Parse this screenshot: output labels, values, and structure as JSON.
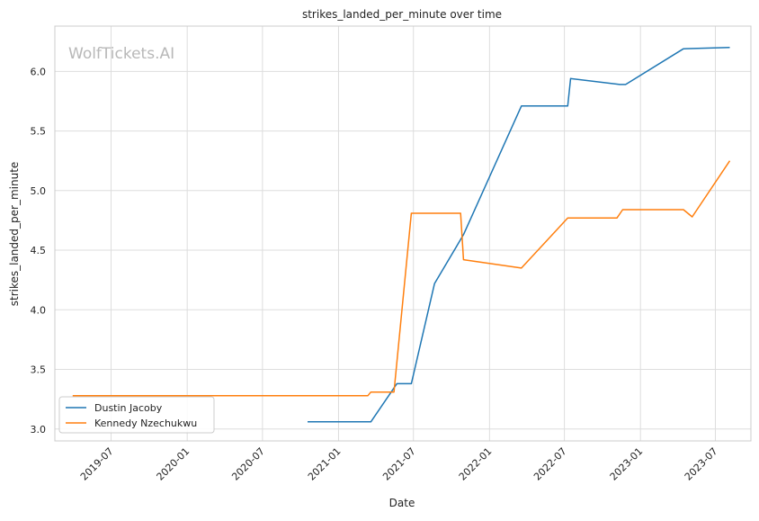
{
  "chart_data": {
    "type": "line",
    "title": "strikes_landed_per_minute over time",
    "xlabel": "Date",
    "ylabel": "strikes_landed_per_minute",
    "watermark": "WolfTickets.AI",
    "xlim": [
      "2019-02-15",
      "2023-09-25"
    ],
    "ylim": [
      2.9,
      6.38
    ],
    "x_ticks": [
      {
        "date": "2019-07-01",
        "label": "2019-07"
      },
      {
        "date": "2020-01-01",
        "label": "2020-01"
      },
      {
        "date": "2020-07-01",
        "label": "2020-07"
      },
      {
        "date": "2021-01-01",
        "label": "2021-01"
      },
      {
        "date": "2021-07-01",
        "label": "2021-07"
      },
      {
        "date": "2022-01-01",
        "label": "2022-01"
      },
      {
        "date": "2022-07-01",
        "label": "2022-07"
      },
      {
        "date": "2023-01-01",
        "label": "2023-01"
      },
      {
        "date": "2023-07-01",
        "label": "2023-07"
      }
    ],
    "y_ticks": [
      3.0,
      3.5,
      4.0,
      4.5,
      5.0,
      5.5,
      6.0
    ],
    "y_tick_labels": [
      "3.0",
      "3.5",
      "4.0",
      "4.5",
      "5.0",
      "5.5",
      "6.0"
    ],
    "grid": true,
    "legend_position": "lower-left",
    "series": [
      {
        "name": "Dustin Jacoby",
        "color": "#1f77b4",
        "points": [
          {
            "x": "2020-10-18",
            "y": 3.06
          },
          {
            "x": "2021-03-20",
            "y": 3.06
          },
          {
            "x": "2021-05-22",
            "y": 3.38
          },
          {
            "x": "2021-06-26",
            "y": 3.38
          },
          {
            "x": "2021-08-21",
            "y": 4.22
          },
          {
            "x": "2021-10-30",
            "y": 4.63
          },
          {
            "x": "2022-03-19",
            "y": 5.71
          },
          {
            "x": "2022-07-09",
            "y": 5.71
          },
          {
            "x": "2022-07-16",
            "y": 5.94
          },
          {
            "x": "2022-11-12",
            "y": 5.89
          },
          {
            "x": "2022-11-26",
            "y": 5.89
          },
          {
            "x": "2023-04-15",
            "y": 6.19
          },
          {
            "x": "2023-08-05",
            "y": 6.2
          }
        ]
      },
      {
        "name": "Kennedy Nzechukwu",
        "color": "#ff7f0e",
        "points": [
          {
            "x": "2019-03-30",
            "y": 3.28
          },
          {
            "x": "2021-03-13",
            "y": 3.28
          },
          {
            "x": "2021-03-20",
            "y": 3.31
          },
          {
            "x": "2021-05-15",
            "y": 3.31
          },
          {
            "x": "2021-06-26",
            "y": 4.81
          },
          {
            "x": "2021-10-23",
            "y": 4.81
          },
          {
            "x": "2021-10-30",
            "y": 4.42
          },
          {
            "x": "2022-03-19",
            "y": 4.35
          },
          {
            "x": "2022-07-09",
            "y": 4.77
          },
          {
            "x": "2022-11-05",
            "y": 4.77
          },
          {
            "x": "2022-11-19",
            "y": 4.84
          },
          {
            "x": "2023-04-15",
            "y": 4.84
          },
          {
            "x": "2023-05-06",
            "y": 4.78
          },
          {
            "x": "2023-08-05",
            "y": 5.25
          }
        ]
      }
    ]
  }
}
